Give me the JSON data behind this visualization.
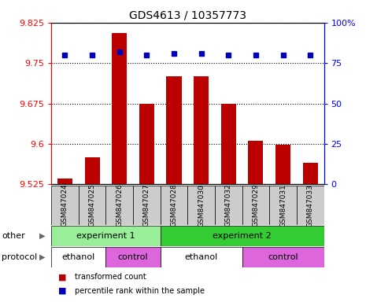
{
  "title": "GDS4613 / 10357773",
  "samples": [
    "GSM847024",
    "GSM847025",
    "GSM847026",
    "GSM847027",
    "GSM847028",
    "GSM847030",
    "GSM847032",
    "GSM847029",
    "GSM847031",
    "GSM847033"
  ],
  "bar_values": [
    9.535,
    9.575,
    9.805,
    9.675,
    9.725,
    9.725,
    9.675,
    9.605,
    9.598,
    9.565
  ],
  "percentile_values": [
    80,
    80,
    82,
    80,
    81,
    81,
    80,
    80,
    80,
    80
  ],
  "ylim": [
    9.525,
    9.825
  ],
  "yticks": [
    9.525,
    9.6,
    9.675,
    9.75,
    9.825
  ],
  "ytick_labels": [
    "9.525",
    "9.6",
    "9.675",
    "9.75",
    "9.825"
  ],
  "right_yticks": [
    0,
    25,
    50,
    75,
    100
  ],
  "right_ylim": [
    0,
    100
  ],
  "bar_color": "#bb0000",
  "dot_color": "#0000bb",
  "other_row": [
    {
      "label": "experiment 1",
      "start": 0,
      "end": 4,
      "color": "#99ee99"
    },
    {
      "label": "experiment 2",
      "start": 4,
      "end": 10,
      "color": "#33cc33"
    }
  ],
  "protocol_row": [
    {
      "label": "ethanol",
      "start": 0,
      "end": 2,
      "color": "#dd66dd"
    },
    {
      "label": "control",
      "start": 2,
      "end": 4,
      "color": "#dd66dd"
    },
    {
      "label": "ethanol",
      "start": 4,
      "end": 7,
      "color": "#dd66dd"
    },
    {
      "label": "control",
      "start": 7,
      "end": 10,
      "color": "#dd66dd"
    }
  ],
  "protocol_ethanol_bg": "#ffffff",
  "protocol_control_bg": "#dd66dd",
  "row_labels": [
    "other",
    "protocol"
  ],
  "legend_items": [
    {
      "color": "#bb0000",
      "label": "transformed count"
    },
    {
      "color": "#0000bb",
      "label": "percentile rank within the sample"
    }
  ],
  "bar_width": 0.55,
  "figsize": [
    4.65,
    3.84
  ],
  "dpi": 100,
  "title_fontsize": 10,
  "tick_fontsize": 8,
  "label_fontsize": 8,
  "xtick_bg": "#cccccc"
}
